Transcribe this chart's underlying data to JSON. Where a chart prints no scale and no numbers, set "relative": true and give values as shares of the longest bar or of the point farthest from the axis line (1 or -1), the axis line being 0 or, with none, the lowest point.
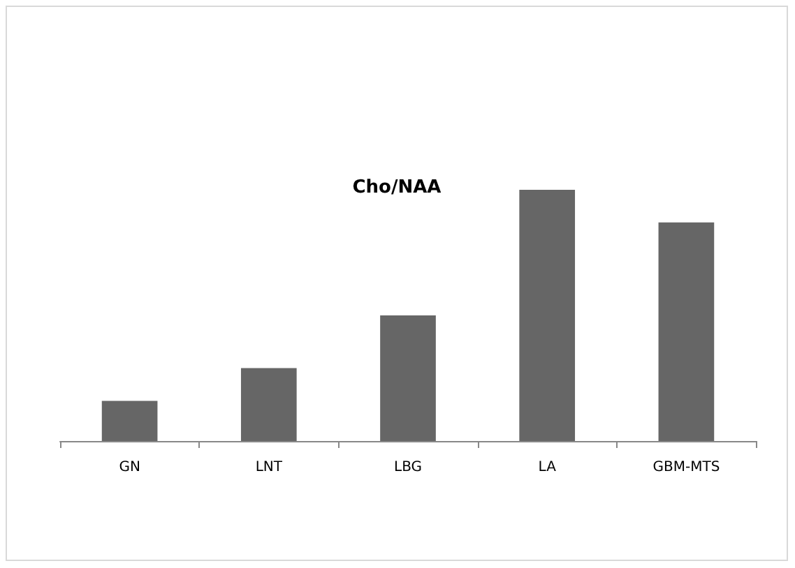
{
  "chart_data": {
    "type": "bar",
    "title": "Cho/NAA",
    "categories": [
      "GN",
      "LNT",
      "LBG",
      "LA",
      "GBM-MTS"
    ],
    "values": [
      0.16,
      0.29,
      0.5,
      1,
      0.87
    ],
    "color": "#666666",
    "relative": true
  }
}
